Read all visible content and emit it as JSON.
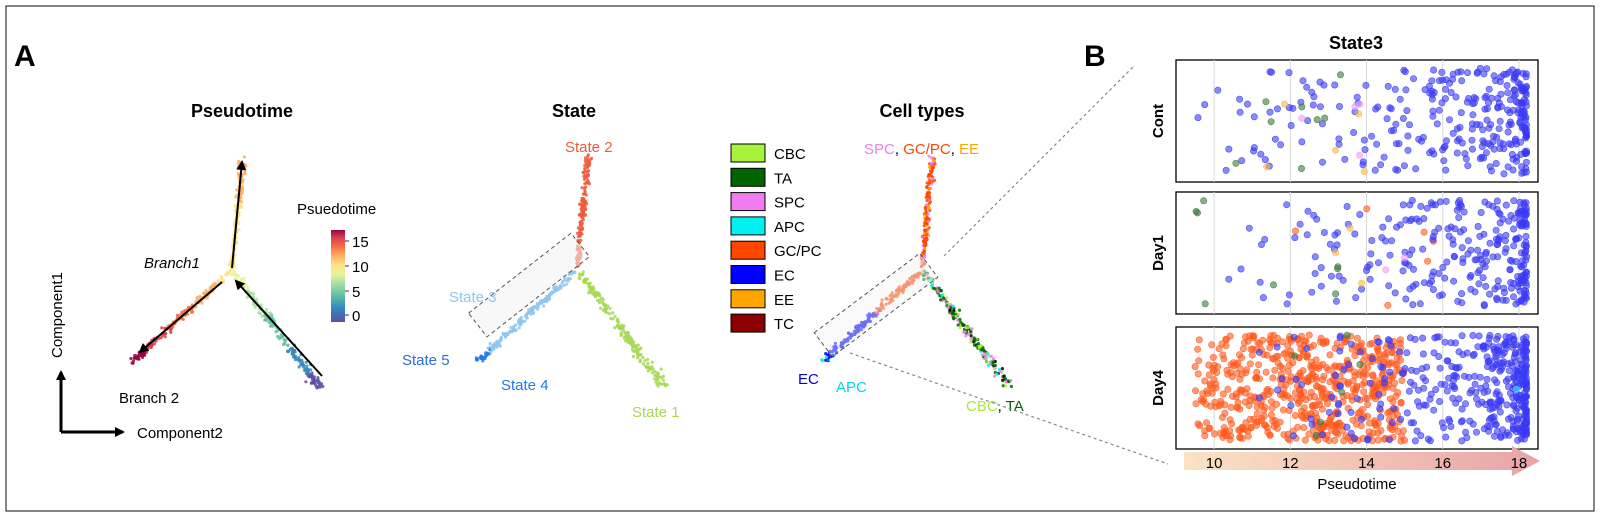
{
  "panel_a": {
    "label": "A",
    "pseudotime": {
      "title": "Pseudotime",
      "branch1_label": "Branch1",
      "branch2_label": "Branch 2",
      "legend_title": "Psuedotime",
      "legend_ticks": [
        "15",
        "10",
        "5",
        "0"
      ],
      "axis_y_label": "Component1",
      "axis_x_label": "Component2",
      "colorscale": [
        "#5e4fa2",
        "#3288bd",
        "#66c2a5",
        "#abdda4",
        "#e6f598",
        "#fee08b",
        "#fdae61",
        "#f46d43",
        "#d53e4f",
        "#9e0142"
      ]
    },
    "state": {
      "title": "State",
      "labels": {
        "state1": "State 1",
        "state2": "State 2",
        "state3": "State 3",
        "state4": "State 4",
        "state5": "State 5"
      },
      "colors": {
        "state1": "#a6d854",
        "state2": "#f05a3c",
        "state3": "#8fc6ee",
        "state4": "#1f78f0",
        "state5": "#2e6be6"
      }
    },
    "cell_types": {
      "title": "Cell types",
      "legend": [
        {
          "name": "CBC",
          "color": "#a6f23c"
        },
        {
          "name": "TA",
          "color": "#006400"
        },
        {
          "name": "SPC",
          "color": "#f07cf0"
        },
        {
          "name": "APC",
          "color": "#00f0f0"
        },
        {
          "name": "GC/PC",
          "color": "#ff4500"
        },
        {
          "name": "EC",
          "color": "#0000ff"
        },
        {
          "name": "EE",
          "color": "#ffa500"
        },
        {
          "name": "TC",
          "color": "#8b0000"
        }
      ],
      "annotations": {
        "spc": "SPC",
        "gcpc": "GC/PC",
        "ee": "EE",
        "ec": "EC",
        "apc": "APC",
        "cbc": "CBC",
        "ta": "TA",
        "sep": ","
      }
    }
  },
  "panel_b": {
    "label": "B",
    "title": "State3",
    "xlabel": "Pseudotime",
    "x_ticks": [
      "10",
      "12",
      "14",
      "16",
      "18"
    ],
    "rows": [
      "Cont",
      "Day1",
      "Day4"
    ]
  },
  "chart_data": [
    {
      "type": "scatter",
      "title": "State3",
      "xlabel": "Pseudotime",
      "xlim": [
        9,
        18.5
      ],
      "facets": [
        "Cont",
        "Day1",
        "Day4"
      ],
      "series": [
        {
          "name": "Cont",
          "points_by_color": {
            "EC": 300,
            "TA": 8,
            "EE": 5,
            "SPC": 4
          }
        },
        {
          "name": "Day1",
          "points_by_color": {
            "EC": 280,
            "TA": 8,
            "GC/PC": 6,
            "EE": 3,
            "SPC": 2
          }
        },
        {
          "name": "Day4",
          "points_by_color": {
            "GC/PC": 600,
            "EC": 400,
            "TA": 6,
            "APC": 1
          }
        }
      ]
    }
  ]
}
